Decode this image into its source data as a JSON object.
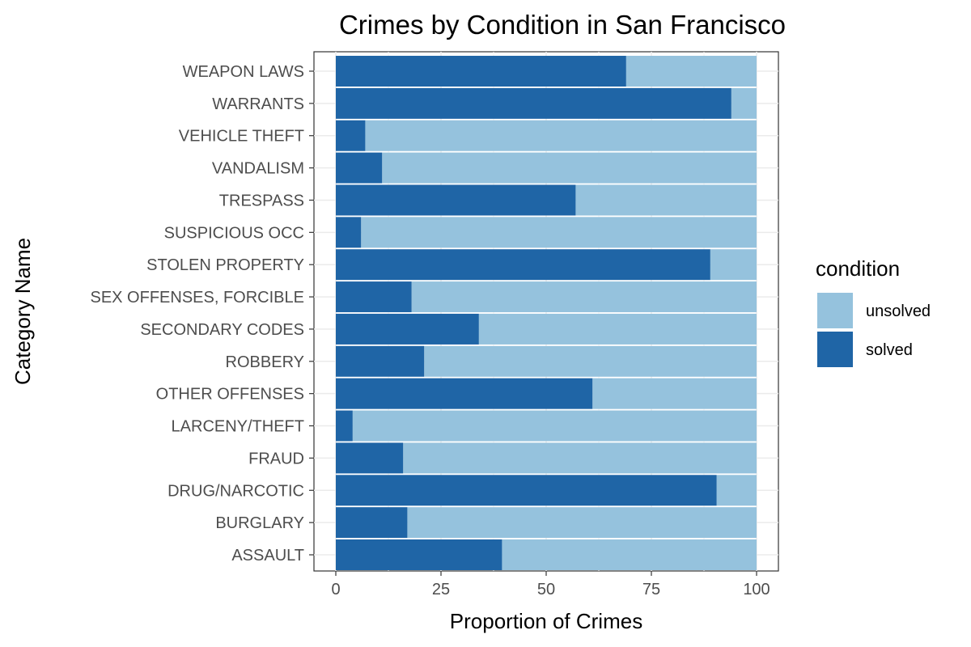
{
  "chart_data": {
    "type": "bar",
    "orientation": "horizontal",
    "stacked": true,
    "title": "Crimes by Condition in San Francisco",
    "xlabel": "Proportion of Crimes",
    "ylabel": "Category Name",
    "xlim": [
      0,
      100
    ],
    "xticks": [
      0,
      25,
      50,
      75,
      100
    ],
    "grid": true,
    "legend": {
      "title": "condition",
      "placement": "right",
      "entries": [
        "unsolved",
        "solved"
      ]
    },
    "categories": [
      "WEAPON LAWS",
      "WARRANTS",
      "VEHICLE THEFT",
      "VANDALISM",
      "TRESPASS",
      "SUSPICIOUS OCC",
      "STOLEN PROPERTY",
      "SEX OFFENSES, FORCIBLE",
      "SECONDARY CODES",
      "ROBBERY",
      "OTHER OFFENSES",
      "LARCENY/THEFT",
      "FRAUD",
      "DRUG/NARCOTIC",
      "BURGLARY",
      "ASSAULT"
    ],
    "series": [
      {
        "name": "solved",
        "color": "#1f65a6",
        "values": [
          69,
          94,
          7,
          11,
          57,
          6,
          89,
          18,
          34,
          21,
          61,
          4,
          16,
          90.5,
          17,
          39.5
        ]
      },
      {
        "name": "unsolved",
        "color": "#95c2dd",
        "values": [
          31,
          6,
          93,
          89,
          43,
          94,
          11,
          82,
          66,
          79,
          39,
          96,
          84,
          9.5,
          83,
          60.5
        ]
      }
    ]
  }
}
